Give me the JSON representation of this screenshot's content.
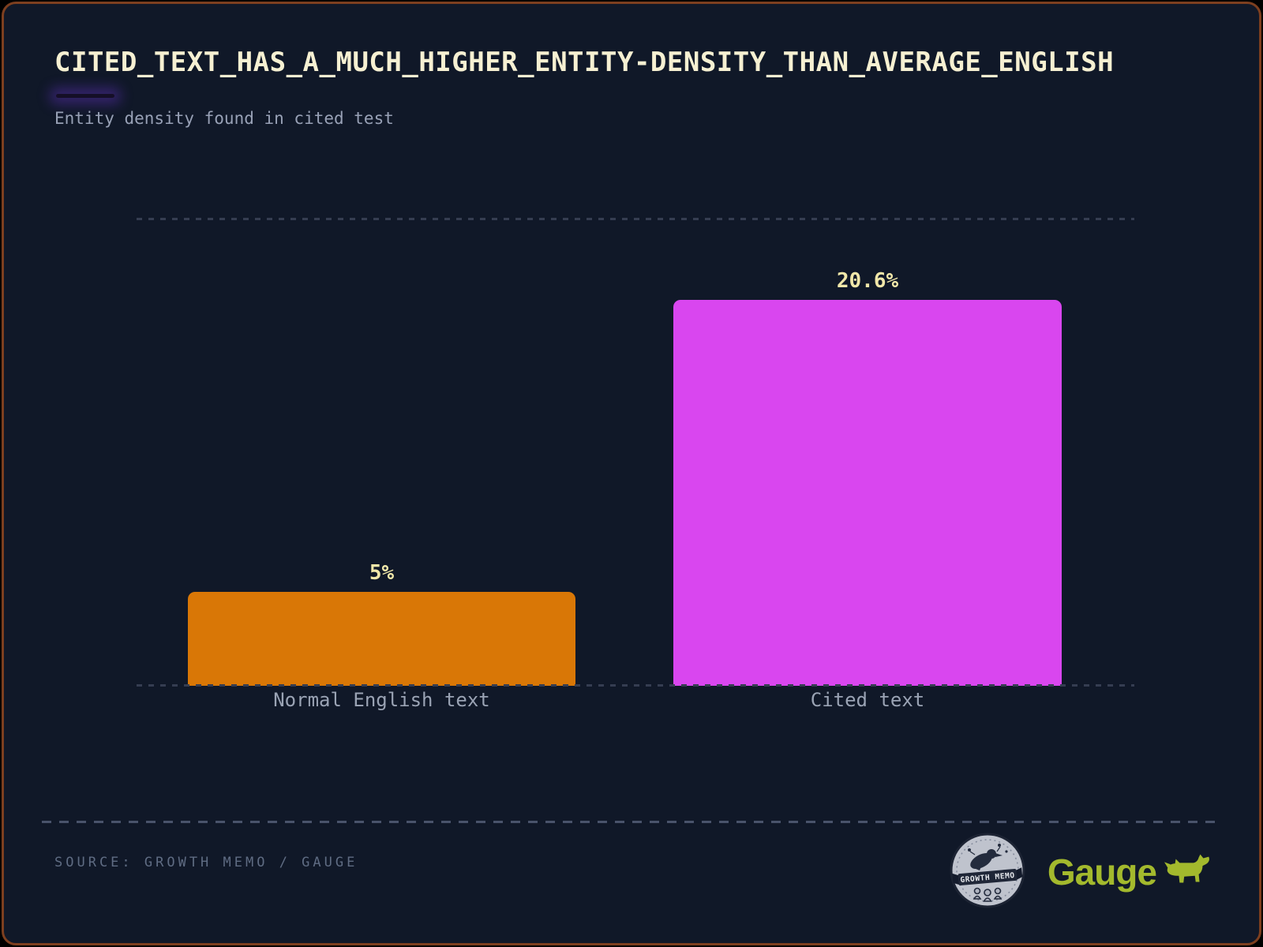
{
  "colors": {
    "background": "#101828",
    "frame_border": "#7d3f1f",
    "title_text": "#f6f0d2",
    "subtitle_text": "#98a1b6",
    "value_label_text": "#f1e7a9",
    "axis_label_text": "#9aa3b4",
    "source_text": "#5f6c83",
    "accent_glow": "#7c3aed",
    "gauge_green": "#a3b92d"
  },
  "chart_data": {
    "type": "bar",
    "title": "CITED_TEXT_HAS_A_MUCH_HIGHER_ENTITY-DENSITY_THAN_AVERAGE_ENGLISH",
    "subtitle": "Entity density found in cited test",
    "categories": [
      "Normal English text",
      "Cited text"
    ],
    "values": [
      5,
      20.6
    ],
    "labels": [
      "5%",
      "20.6%"
    ],
    "colors": [
      "#d97706",
      "#d946ef"
    ],
    "xlabel": "",
    "ylabel": "",
    "ylim": [
      0,
      25
    ],
    "grid": "horizontal dotted lines at 0 and 25, no tick labels",
    "legend": "none"
  },
  "footer": {
    "source": "SOURCE: GROWTH MEMO / GAUGE",
    "growth_memo_label": "GROWTH MEMO",
    "gauge_label": "Gauge"
  }
}
